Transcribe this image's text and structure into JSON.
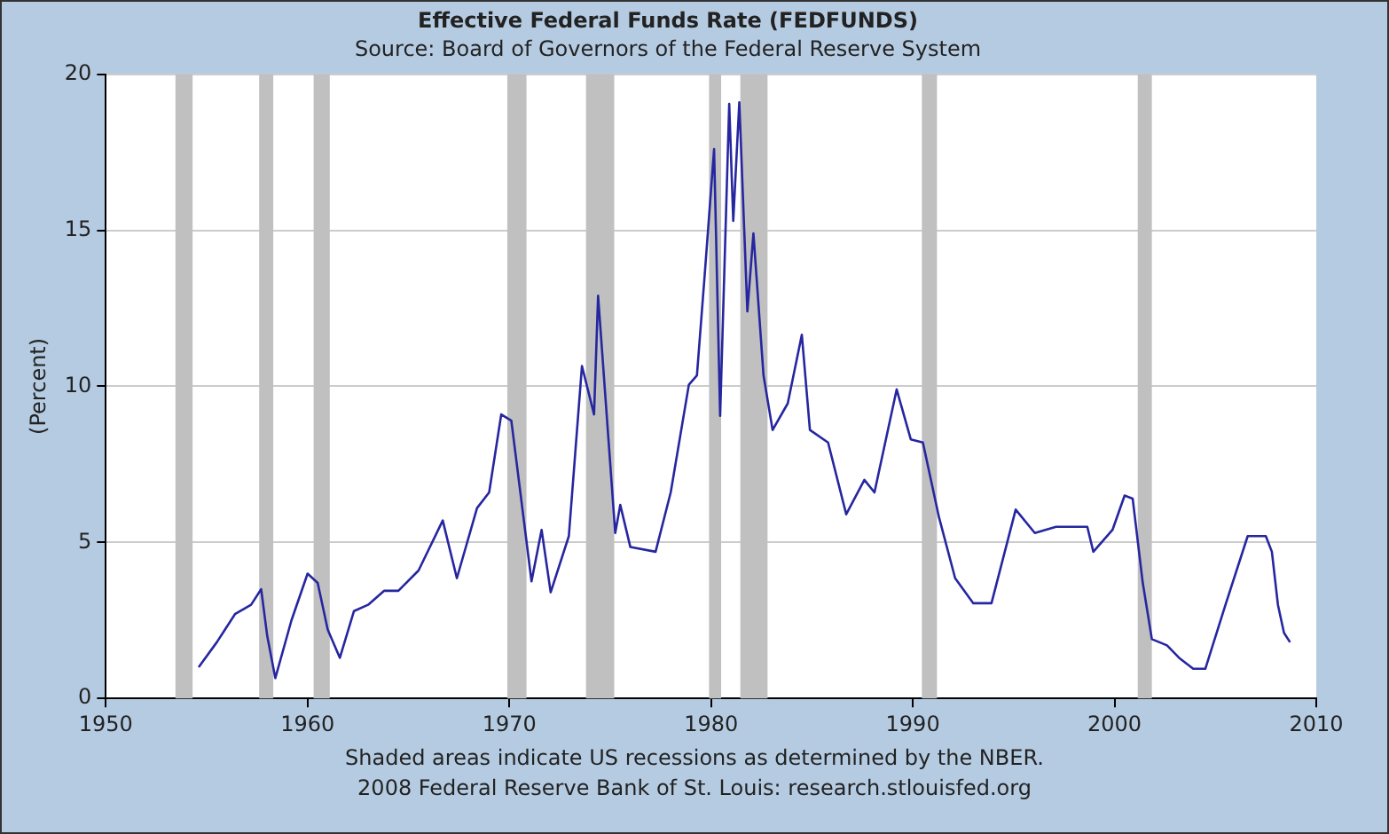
{
  "chart_data": {
    "type": "line",
    "title": "Effective Federal Funds Rate (FEDFUNDS)",
    "subtitle": "Source: Board of Governors of the Federal Reserve System",
    "ylabel": "(Percent)",
    "annotations": [
      "Shaded areas indicate US recessions as determined by the NBER.",
      "2008 Federal Reserve Bank of St. Louis: research.stlouisfed.org"
    ],
    "x": [
      1954.6,
      1955.5,
      1956.4,
      1957.2,
      1957.7,
      1958.0,
      1958.4,
      1959.2,
      1960.0,
      1960.5,
      1961.0,
      1961.6,
      1962.3,
      1963.0,
      1963.8,
      1964.5,
      1965.5,
      1966.7,
      1967.4,
      1968.4,
      1969.0,
      1969.6,
      1970.1,
      1971.1,
      1971.6,
      1972.05,
      1972.95,
      1973.6,
      1974.2,
      1974.4,
      1975.25,
      1975.5,
      1976.0,
      1977.25,
      1978.0,
      1978.9,
      1979.3,
      1979.7,
      1980.15,
      1980.45,
      1980.9,
      1981.1,
      1981.4,
      1981.8,
      1982.1,
      1982.6,
      1983.05,
      1983.8,
      1984.5,
      1984.9,
      1985.8,
      1986.7,
      1987.6,
      1988.1,
      1989.2,
      1989.9,
      1990.5,
      1991.3,
      1992.1,
      1993.0,
      1993.9,
      1995.1,
      1996.05,
      1997.1,
      1998.65,
      1998.95,
      1999.9,
      2000.5,
      2000.9,
      2001.4,
      2001.85,
      2002.6,
      2003.2,
      2003.9,
      2004.5,
      2005.5,
      2006.6,
      2007.5,
      2007.8,
      2008.1,
      2008.4,
      2008.7
    ],
    "series": [
      {
        "color": "#2626a0",
        "values": [
          1.0,
          1.8,
          2.7,
          3.0,
          3.5,
          2.0,
          0.65,
          2.5,
          4.0,
          3.7,
          2.2,
          1.3,
          2.8,
          3.0,
          3.45,
          3.45,
          4.1,
          5.7,
          3.85,
          6.1,
          6.6,
          9.1,
          8.9,
          3.75,
          5.4,
          3.4,
          5.2,
          10.65,
          9.1,
          12.9,
          5.3,
          6.2,
          4.85,
          4.7,
          6.6,
          10.05,
          10.35,
          13.7,
          17.6,
          9.05,
          19.05,
          15.3,
          19.1,
          12.4,
          14.9,
          10.35,
          8.6,
          9.45,
          11.65,
          8.6,
          8.2,
          5.9,
          7.0,
          6.6,
          9.9,
          8.3,
          8.2,
          5.8,
          3.85,
          3.05,
          3.05,
          6.05,
          5.3,
          5.5,
          5.5,
          4.7,
          5.4,
          6.5,
          6.4,
          3.7,
          1.9,
          1.7,
          1.3,
          0.95,
          0.95,
          3.0,
          5.2,
          5.2,
          4.7,
          3.0,
          2.1,
          1.8
        ]
      }
    ],
    "xlim": [
      1950,
      2010
    ],
    "xticks": [
      1950,
      1960,
      1970,
      1980,
      1990,
      2000,
      2010
    ],
    "ylim": [
      0,
      20
    ],
    "yticks": [
      0,
      5,
      10,
      15,
      20
    ],
    "grid": "y",
    "legend": false,
    "bands": [
      {
        "axis": "x",
        "from": 1953.45,
        "to": 1954.3,
        "color": "#c0c0c0"
      },
      {
        "axis": "x",
        "from": 1957.6,
        "to": 1958.3,
        "color": "#c0c0c0"
      },
      {
        "axis": "x",
        "from": 1960.3,
        "to": 1961.1,
        "color": "#c0c0c0"
      },
      {
        "axis": "x",
        "from": 1969.9,
        "to": 1970.85,
        "color": "#c0c0c0"
      },
      {
        "axis": "x",
        "from": 1973.8,
        "to": 1975.2,
        "color": "#c0c0c0"
      },
      {
        "axis": "x",
        "from": 1979.9,
        "to": 1980.5,
        "color": "#c0c0c0"
      },
      {
        "axis": "x",
        "from": 1981.45,
        "to": 1982.8,
        "color": "#c0c0c0"
      },
      {
        "axis": "x",
        "from": 1990.45,
        "to": 1991.2,
        "color": "#c0c0c0"
      },
      {
        "axis": "x",
        "from": 2001.15,
        "to": 2001.85,
        "color": "#c0c0c0"
      }
    ]
  }
}
